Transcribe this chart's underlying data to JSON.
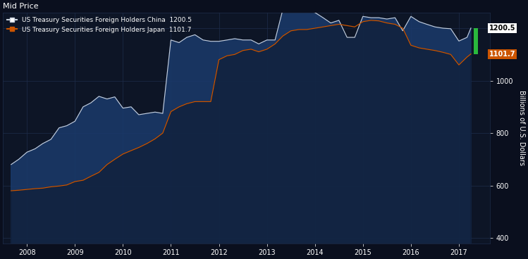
{
  "title": "Mid Price",
  "legend_china": "US Treasury Securities Foreign Holders China  1200.5",
  "legend_japan": "US Treasury Securities Foreign Holders Japan  1101.7",
  "ylabel": "Billions of U.S. Dollars",
  "china_last": 1200.5,
  "japan_last": 1101.7,
  "bg_color": "#0a0f1e",
  "plot_bg_color": "#0d1526",
  "china_color": "#c8d0dc",
  "japan_color": "#cc5500",
  "grid_color": "#1e2d4a",
  "yticks": [
    400,
    600,
    800,
    1000,
    1200
  ],
  "ylim": [
    380,
    1260
  ],
  "xlim_start": 2007.5,
  "xlim_end": 2017.5,
  "xticks": [
    2008,
    2009,
    2010,
    2011,
    2012,
    2013,
    2014,
    2015,
    2016,
    2017
  ],
  "china_x": [
    2007.67,
    2007.83,
    2008.0,
    2008.17,
    2008.33,
    2008.5,
    2008.67,
    2008.83,
    2009.0,
    2009.17,
    2009.33,
    2009.5,
    2009.67,
    2009.83,
    2010.0,
    2010.17,
    2010.33,
    2010.5,
    2010.67,
    2010.83,
    2011.0,
    2011.17,
    2011.33,
    2011.5,
    2011.67,
    2011.83,
    2012.0,
    2012.17,
    2012.33,
    2012.5,
    2012.67,
    2012.83,
    2013.0,
    2013.17,
    2013.33,
    2013.5,
    2013.67,
    2013.83,
    2014.0,
    2014.17,
    2014.33,
    2014.5,
    2014.67,
    2014.83,
    2015.0,
    2015.17,
    2015.33,
    2015.5,
    2015.67,
    2015.83,
    2016.0,
    2016.17,
    2016.33,
    2016.5,
    2016.67,
    2016.83,
    2017.0,
    2017.17,
    2017.25
  ],
  "china_y": [
    680,
    700,
    727,
    740,
    760,
    776,
    820,
    828,
    845,
    900,
    915,
    940,
    930,
    938,
    895,
    900,
    870,
    875,
    880,
    875,
    1155,
    1145,
    1165,
    1175,
    1155,
    1150,
    1150,
    1155,
    1160,
    1155,
    1155,
    1140,
    1155,
    1155,
    1270,
    1270,
    1265,
    1265,
    1260,
    1240,
    1220,
    1230,
    1165,
    1165,
    1245,
    1240,
    1240,
    1235,
    1240,
    1190,
    1245,
    1225,
    1215,
    1205,
    1200,
    1198,
    1151,
    1165,
    1200.5
  ],
  "japan_x": [
    2007.67,
    2007.83,
    2008.0,
    2008.17,
    2008.33,
    2008.5,
    2008.67,
    2008.83,
    2009.0,
    2009.17,
    2009.33,
    2009.5,
    2009.67,
    2009.83,
    2010.0,
    2010.17,
    2010.33,
    2010.5,
    2010.67,
    2010.83,
    2011.0,
    2011.17,
    2011.33,
    2011.5,
    2011.67,
    2011.83,
    2012.0,
    2012.17,
    2012.33,
    2012.5,
    2012.67,
    2012.83,
    2013.0,
    2013.17,
    2013.33,
    2013.5,
    2013.67,
    2013.83,
    2014.0,
    2014.17,
    2014.33,
    2014.5,
    2014.67,
    2014.83,
    2015.0,
    2015.17,
    2015.33,
    2015.5,
    2015.67,
    2015.83,
    2016.0,
    2016.17,
    2016.33,
    2016.5,
    2016.67,
    2016.83,
    2017.0,
    2017.17,
    2017.25
  ],
  "japan_y": [
    580,
    582,
    585,
    588,
    590,
    595,
    598,
    602,
    615,
    620,
    635,
    650,
    680,
    700,
    720,
    733,
    745,
    760,
    778,
    800,
    882,
    900,
    912,
    920,
    920,
    920,
    1080,
    1095,
    1100,
    1115,
    1120,
    1110,
    1120,
    1140,
    1170,
    1190,
    1195,
    1195,
    1200,
    1205,
    1210,
    1215,
    1210,
    1205,
    1225,
    1230,
    1228,
    1220,
    1215,
    1200,
    1135,
    1125,
    1120,
    1115,
    1108,
    1100,
    1060,
    1090,
    1101.7
  ]
}
